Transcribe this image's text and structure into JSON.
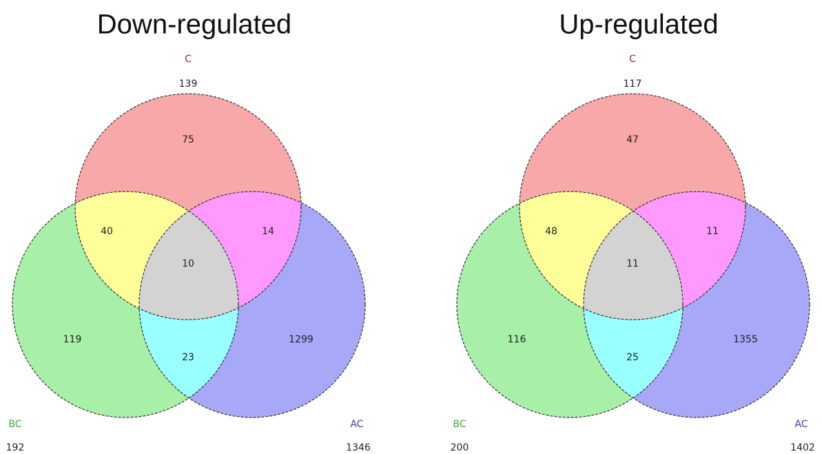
{
  "diagrams": [
    {
      "title": "Down-regulated",
      "sets": [
        {
          "name": "C",
          "total": 139
        },
        {
          "name": "BC",
          "total": 192
        },
        {
          "name": "AC",
          "total": 1346
        }
      ],
      "regions": [
        75,
        40,
        14,
        10,
        119,
        23,
        1299
      ]
    },
    {
      "title": "Up-regulated",
      "sets": [
        {
          "name": "C",
          "total": 117
        },
        {
          "name": "BC",
          "total": 200
        },
        {
          "name": "AC",
          "total": 1402
        }
      ],
      "regions": [
        47,
        48,
        11,
        11,
        116,
        25,
        1355
      ]
    }
  ]
}
